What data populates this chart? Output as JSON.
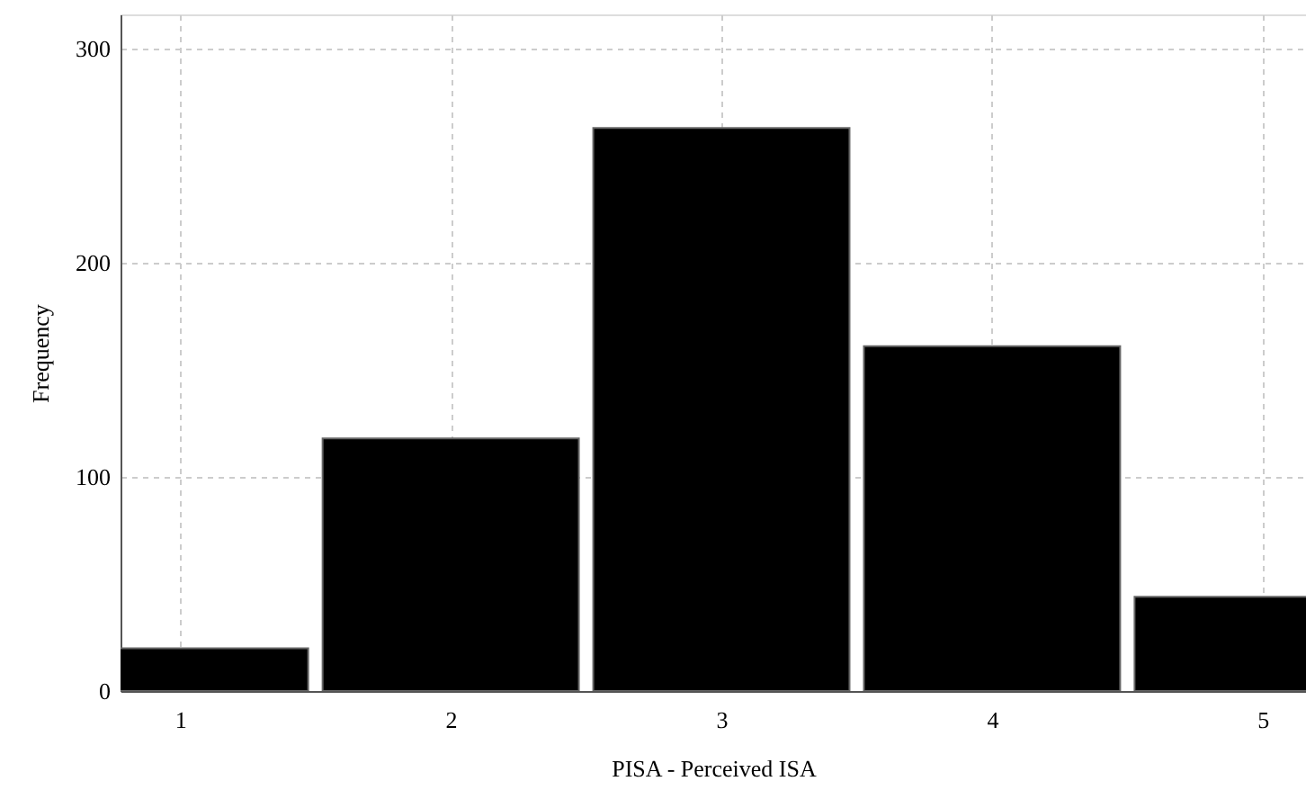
{
  "chart_data": {
    "type": "histogram",
    "xlabel": "PISA - Perceived ISA",
    "ylabel": "Frequency",
    "bins": [
      0.5,
      1.5,
      2.5,
      3.5,
      4.5,
      5.5
    ],
    "values": [
      20,
      118,
      263,
      161,
      44
    ],
    "color": "#000000",
    "xlim": [
      0.78,
      5.16
    ],
    "xticks": [
      1,
      2,
      3,
      4,
      5
    ],
    "ylim": [
      0,
      316
    ],
    "yticks": [
      0,
      100,
      200,
      300
    ],
    "grid": true
  }
}
